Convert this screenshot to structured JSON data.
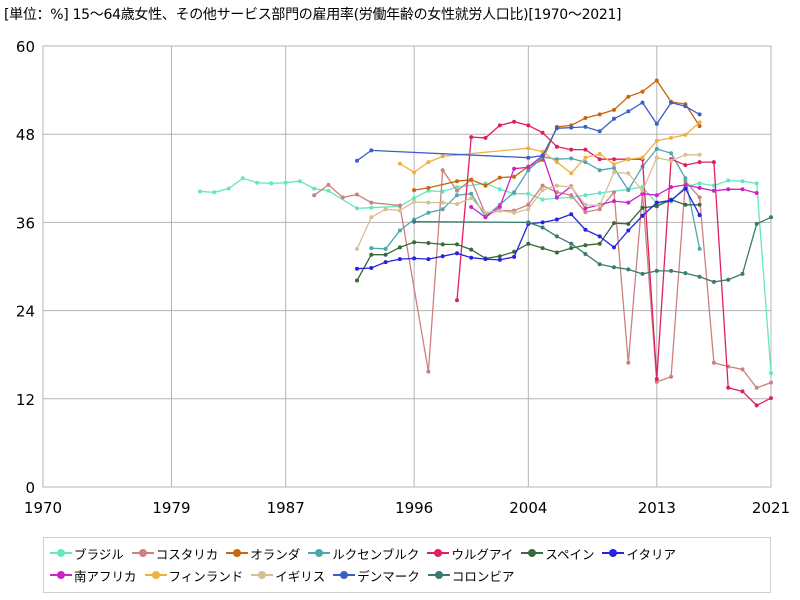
{
  "title": "[単位：%] 15～64歳女性、その他サービス部門の雇用率(労働年齢の女性就労人口比)[1970～2021]",
  "chart_data": {
    "type": "line",
    "title": "[単位：%] 15～64歳女性、その他サービス部門の雇用率(労働年齢の女性就労人口比)[1970～2021]",
    "xlabel": "",
    "ylabel": "",
    "xlim": [
      1970,
      2021
    ],
    "ylim": [
      0,
      60
    ],
    "x_ticks": [
      "1970",
      "1979",
      "1987",
      "1996",
      "2004",
      "2013",
      "2021"
    ],
    "y_ticks": [
      "0",
      "12",
      "24",
      "36",
      "48",
      "60"
    ],
    "grid": true,
    "legend_position": "bottom",
    "series": [
      {
        "name": "ブラジル",
        "color": "#66e6c0",
        "points": [
          [
            1981,
            40.2
          ],
          [
            1982,
            40.1
          ],
          [
            1983,
            40.6
          ],
          [
            1984,
            42.0
          ],
          [
            1985,
            41.4
          ],
          [
            1986,
            41.3
          ],
          [
            1987,
            41.4
          ],
          [
            1988,
            41.6
          ],
          [
            1989,
            40.6
          ],
          [
            1990,
            40.3
          ],
          [
            1992,
            37.9
          ],
          [
            1993,
            38.0
          ],
          [
            1995,
            38.2
          ],
          [
            1996,
            39.3
          ],
          [
            1997,
            40.3
          ],
          [
            1998,
            40.2
          ],
          [
            1999,
            40.8
          ],
          [
            2001,
            41.3
          ],
          [
            2002,
            40.5
          ],
          [
            2003,
            39.9
          ],
          [
            2004,
            39.9
          ],
          [
            2005,
            39.1
          ],
          [
            2006,
            39.3
          ],
          [
            2007,
            39.4
          ],
          [
            2008,
            39.7
          ],
          [
            2009,
            40.0
          ],
          [
            2011,
            40.5
          ],
          [
            2012,
            40.8
          ],
          [
            2013,
            38.6
          ],
          [
            2014,
            38.8
          ],
          [
            2015,
            40.9
          ],
          [
            2016,
            41.3
          ],
          [
            2017,
            41.0
          ],
          [
            2018,
            41.7
          ],
          [
            2019,
            41.6
          ],
          [
            2020,
            41.3
          ],
          [
            2021,
            15.5
          ]
        ]
      },
      {
        "name": "コスタリカ",
        "color": "#cc8080",
        "points": [
          [
            1989,
            39.7
          ],
          [
            1990,
            41.1
          ],
          [
            1991,
            39.4
          ],
          [
            1992,
            39.8
          ],
          [
            1993,
            38.7
          ],
          [
            1995,
            38.3
          ],
          [
            1997,
            15.7
          ],
          [
            1998,
            43.1
          ],
          [
            1999,
            40.3
          ],
          [
            2000,
            41.8
          ],
          [
            2001,
            37.1
          ],
          [
            2002,
            37.6
          ],
          [
            2003,
            37.6
          ],
          [
            2004,
            38.4
          ],
          [
            2005,
            41.0
          ],
          [
            2006,
            40.1
          ],
          [
            2007,
            39.7
          ],
          [
            2008,
            37.4
          ],
          [
            2009,
            37.8
          ],
          [
            2010,
            40.1
          ],
          [
            2011,
            16.9
          ],
          [
            2012,
            40.0
          ],
          [
            2013,
            14.3
          ],
          [
            2014,
            15.0
          ],
          [
            2015,
            41.6
          ],
          [
            2016,
            39.4
          ],
          [
            2017,
            16.9
          ],
          [
            2018,
            16.4
          ],
          [
            2019,
            16.0
          ],
          [
            2020,
            13.5
          ],
          [
            2021,
            14.2
          ]
        ]
      },
      {
        "name": "オランダ",
        "color": "#c8660f",
        "points": [
          [
            1996,
            40.4
          ],
          [
            1997,
            40.7
          ],
          [
            1999,
            41.6
          ],
          [
            2000,
            41.8
          ],
          [
            2001,
            41.0
          ],
          [
            2002,
            42.1
          ],
          [
            2003,
            42.2
          ],
          [
            2004,
            43.6
          ],
          [
            2005,
            44.5
          ],
          [
            2006,
            49.0
          ],
          [
            2007,
            49.2
          ],
          [
            2008,
            50.2
          ],
          [
            2009,
            50.7
          ],
          [
            2010,
            51.3
          ],
          [
            2011,
            53.1
          ],
          [
            2012,
            53.8
          ],
          [
            2013,
            55.3
          ],
          [
            2014,
            52.4
          ],
          [
            2015,
            52.1
          ],
          [
            2016,
            49.1
          ]
        ]
      },
      {
        "name": "ルクセンブルク",
        "color": "#4da6b0",
        "points": [
          [
            1993,
            32.5
          ],
          [
            1994,
            32.4
          ],
          [
            1995,
            34.9
          ],
          [
            1996,
            36.4
          ],
          [
            1997,
            37.3
          ],
          [
            1998,
            37.8
          ],
          [
            1999,
            39.7
          ],
          [
            2000,
            39.9
          ],
          [
            2001,
            36.8
          ],
          [
            2002,
            38.4
          ],
          [
            2003,
            40.1
          ],
          [
            2004,
            43.1
          ],
          [
            2005,
            44.9
          ],
          [
            2006,
            44.6
          ],
          [
            2007,
            44.7
          ],
          [
            2008,
            44.2
          ],
          [
            2009,
            43.1
          ],
          [
            2010,
            43.4
          ],
          [
            2011,
            40.4
          ],
          [
            2012,
            43.6
          ],
          [
            2013,
            46.0
          ],
          [
            2014,
            45.4
          ],
          [
            2015,
            42.0
          ],
          [
            2016,
            32.4
          ]
        ]
      },
      {
        "name": "ウルグアイ",
        "color": "#e0205a",
        "points": [
          [
            1999,
            25.4
          ],
          [
            2000,
            47.6
          ],
          [
            2001,
            47.5
          ],
          [
            2002,
            49.2
          ],
          [
            2003,
            49.7
          ],
          [
            2004,
            49.2
          ],
          [
            2005,
            48.2
          ],
          [
            2006,
            46.3
          ],
          [
            2007,
            45.9
          ],
          [
            2008,
            45.9
          ],
          [
            2009,
            44.6
          ],
          [
            2010,
            44.6
          ],
          [
            2011,
            44.6
          ],
          [
            2012,
            44.6
          ],
          [
            2013,
            14.7
          ],
          [
            2014,
            44.6
          ],
          [
            2015,
            43.8
          ],
          [
            2016,
            44.2
          ],
          [
            2017,
            44.2
          ],
          [
            2018,
            13.5
          ],
          [
            2019,
            13.0
          ],
          [
            2020,
            11.1
          ],
          [
            2021,
            12.1
          ]
        ]
      },
      {
        "name": "スペイン",
        "color": "#3a6a3a",
        "points": [
          [
            1992,
            28.1
          ],
          [
            1993,
            31.6
          ],
          [
            1994,
            31.6
          ],
          [
            1995,
            32.6
          ],
          [
            1996,
            33.3
          ],
          [
            1997,
            33.2
          ],
          [
            1998,
            33.0
          ],
          [
            1999,
            33.0
          ],
          [
            2000,
            32.3
          ],
          [
            2001,
            31.1
          ],
          [
            2002,
            31.4
          ],
          [
            2003,
            32.0
          ],
          [
            2004,
            33.1
          ],
          [
            2005,
            32.5
          ],
          [
            2006,
            31.9
          ],
          [
            2007,
            32.5
          ],
          [
            2008,
            32.9
          ],
          [
            2009,
            33.1
          ],
          [
            2010,
            35.9
          ],
          [
            2011,
            35.8
          ],
          [
            2012,
            38.0
          ],
          [
            2013,
            38.2
          ],
          [
            2014,
            39.1
          ],
          [
            2015,
            38.4
          ],
          [
            2016,
            38.4
          ]
        ]
      },
      {
        "name": "イタリア",
        "color": "#2424dd",
        "points": [
          [
            1992,
            29.7
          ],
          [
            1993,
            29.8
          ],
          [
            1994,
            30.6
          ],
          [
            1995,
            31.0
          ],
          [
            1996,
            31.1
          ],
          [
            1997,
            31.0
          ],
          [
            1998,
            31.4
          ],
          [
            1999,
            31.8
          ],
          [
            2000,
            31.2
          ],
          [
            2001,
            31.0
          ],
          [
            2002,
            30.9
          ],
          [
            2003,
            31.3
          ],
          [
            2004,
            35.8
          ],
          [
            2005,
            36.0
          ],
          [
            2006,
            36.4
          ],
          [
            2007,
            37.1
          ],
          [
            2008,
            35.0
          ],
          [
            2009,
            34.1
          ],
          [
            2010,
            32.6
          ],
          [
            2011,
            34.9
          ],
          [
            2012,
            36.9
          ],
          [
            2013,
            38.7
          ],
          [
            2014,
            39.0
          ],
          [
            2015,
            40.6
          ],
          [
            2016,
            37.0
          ]
        ]
      },
      {
        "name": "南アフリカ",
        "color": "#cc22cc",
        "points": [
          [
            2000,
            38.1
          ],
          [
            2001,
            36.7
          ],
          [
            2002,
            38.1
          ],
          [
            2003,
            43.3
          ],
          [
            2004,
            43.5
          ],
          [
            2005,
            45.1
          ],
          [
            2006,
            39.4
          ],
          [
            2007,
            40.9
          ],
          [
            2008,
            37.9
          ],
          [
            2009,
            38.4
          ],
          [
            2010,
            38.9
          ],
          [
            2011,
            38.7
          ],
          [
            2012,
            39.9
          ],
          [
            2013,
            39.7
          ],
          [
            2014,
            40.8
          ],
          [
            2015,
            41.1
          ],
          [
            2016,
            40.7
          ],
          [
            2017,
            40.3
          ],
          [
            2018,
            40.5
          ],
          [
            2019,
            40.5
          ],
          [
            2020,
            40.0
          ]
        ]
      },
      {
        "name": "フィンランド",
        "color": "#f0b040",
        "points": [
          [
            1995,
            44.0
          ],
          [
            1996,
            42.8
          ],
          [
            1997,
            44.2
          ],
          [
            1998,
            45.0
          ],
          [
            2004,
            46.1
          ],
          [
            2005,
            45.6
          ],
          [
            2006,
            44.2
          ],
          [
            2007,
            42.7
          ],
          [
            2008,
            44.8
          ],
          [
            2009,
            45.3
          ],
          [
            2010,
            43.9
          ],
          [
            2011,
            44.6
          ],
          [
            2012,
            44.8
          ],
          [
            2013,
            47.1
          ],
          [
            2014,
            47.5
          ],
          [
            2015,
            47.9
          ],
          [
            2016,
            49.6
          ]
        ]
      },
      {
        "name": "イギリス",
        "color": "#d4c090",
        "points": [
          [
            1992,
            32.4
          ],
          [
            1993,
            36.7
          ],
          [
            1994,
            37.8
          ],
          [
            1995,
            37.6
          ],
          [
            1996,
            38.8
          ],
          [
            1997,
            38.7
          ],
          [
            1998,
            38.7
          ],
          [
            1999,
            38.5
          ],
          [
            2000,
            39.3
          ],
          [
            2001,
            37.3
          ],
          [
            2002,
            37.6
          ],
          [
            2003,
            37.3
          ],
          [
            2004,
            37.8
          ],
          [
            2005,
            40.4
          ],
          [
            2006,
            41.0
          ],
          [
            2007,
            40.8
          ],
          [
            2008,
            38.4
          ],
          [
            2009,
            38.3
          ],
          [
            2010,
            42.8
          ],
          [
            2011,
            42.7
          ],
          [
            2012,
            40.3
          ],
          [
            2013,
            44.8
          ],
          [
            2014,
            44.4
          ],
          [
            2015,
            45.2
          ],
          [
            2016,
            45.2
          ]
        ]
      },
      {
        "name": "デンマーク",
        "color": "#3a5fc8",
        "points": [
          [
            1992,
            44.4
          ],
          [
            1993,
            45.8
          ],
          [
            2004,
            44.8
          ],
          [
            2005,
            45.1
          ],
          [
            2006,
            48.8
          ],
          [
            2007,
            48.9
          ],
          [
            2008,
            49.0
          ],
          [
            2009,
            48.4
          ],
          [
            2010,
            50.1
          ],
          [
            2011,
            51.1
          ],
          [
            2012,
            52.3
          ],
          [
            2013,
            49.4
          ],
          [
            2014,
            52.3
          ],
          [
            2015,
            51.8
          ],
          [
            2016,
            50.7
          ]
        ]
      },
      {
        "name": "コロンビア",
        "color": "#3a7a70",
        "points": [
          [
            1996,
            36.1
          ],
          [
            2004,
            36.0
          ],
          [
            2005,
            35.3
          ],
          [
            2006,
            34.1
          ],
          [
            2007,
            33.1
          ],
          [
            2008,
            31.7
          ],
          [
            2009,
            30.3
          ],
          [
            2010,
            29.9
          ],
          [
            2011,
            29.6
          ],
          [
            2012,
            29.0
          ],
          [
            2013,
            29.4
          ],
          [
            2014,
            29.4
          ],
          [
            2015,
            29.1
          ],
          [
            2016,
            28.6
          ],
          [
            2017,
            27.9
          ],
          [
            2018,
            28.2
          ],
          [
            2019,
            29.0
          ],
          [
            2020,
            35.8
          ],
          [
            2021,
            36.7
          ]
        ]
      }
    ]
  }
}
